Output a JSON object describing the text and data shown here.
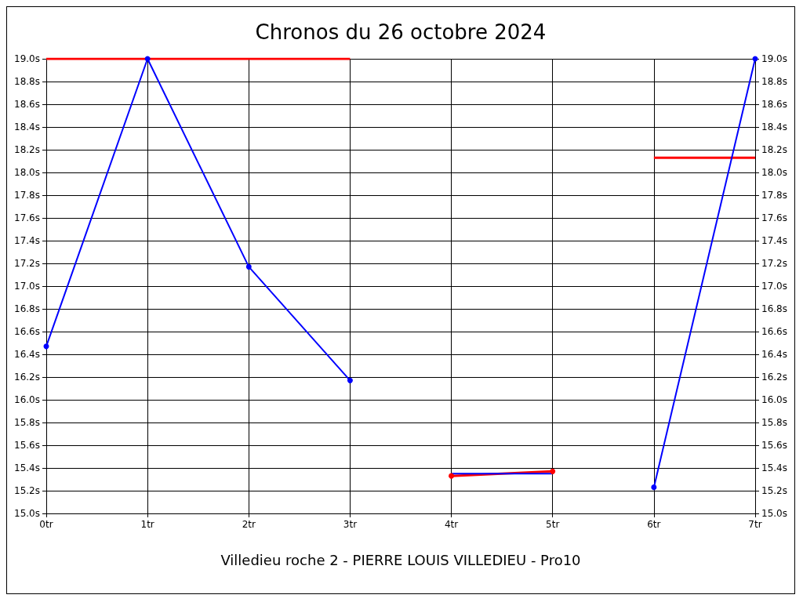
{
  "chart_data": {
    "type": "line",
    "title": "Chronos du 26 octobre 2024",
    "xlabel": "Villedieu roche 2 - PIERRE LOUIS VILLEDIEU - Pro10",
    "xlim": [
      0,
      7
    ],
    "xticks": [
      {
        "value": 0,
        "label": "0tr"
      },
      {
        "value": 1,
        "label": "1tr"
      },
      {
        "value": 2,
        "label": "2tr"
      },
      {
        "value": 3,
        "label": "3tr"
      },
      {
        "value": 4,
        "label": "4tr"
      },
      {
        "value": 5,
        "label": "5tr"
      },
      {
        "value": 6,
        "label": "6tr"
      },
      {
        "value": 7,
        "label": "7tr"
      }
    ],
    "ylim": [
      15.0,
      19.0
    ],
    "yticks": [
      {
        "value": 15.0,
        "label": "15.0s"
      },
      {
        "value": 15.2,
        "label": "15.2s"
      },
      {
        "value": 15.4,
        "label": "15.4s"
      },
      {
        "value": 15.6,
        "label": "15.6s"
      },
      {
        "value": 15.8,
        "label": "15.8s"
      },
      {
        "value": 16.0,
        "label": "16.0s"
      },
      {
        "value": 16.2,
        "label": "16.2s"
      },
      {
        "value": 16.4,
        "label": "16.4s"
      },
      {
        "value": 16.6,
        "label": "16.6s"
      },
      {
        "value": 16.8,
        "label": "16.8s"
      },
      {
        "value": 17.0,
        "label": "17.0s"
      },
      {
        "value": 17.2,
        "label": "17.2s"
      },
      {
        "value": 17.4,
        "label": "17.4s"
      },
      {
        "value": 17.6,
        "label": "17.6s"
      },
      {
        "value": 17.8,
        "label": "17.8s"
      },
      {
        "value": 18.0,
        "label": "18.0s"
      },
      {
        "value": 18.2,
        "label": "18.2s"
      },
      {
        "value": 18.4,
        "label": "18.4s"
      },
      {
        "value": 18.6,
        "label": "18.6s"
      },
      {
        "value": 18.8,
        "label": "18.8s"
      },
      {
        "value": 19.0,
        "label": "19.0s"
      }
    ],
    "y2lim": [
      15.0,
      19.0
    ],
    "y2ticks": [
      {
        "value": 15.0,
        "label": "15.0s"
      },
      {
        "value": 15.2,
        "label": "15.2s"
      },
      {
        "value": 15.4,
        "label": "15.4s"
      },
      {
        "value": 15.6,
        "label": "15.6s"
      },
      {
        "value": 15.8,
        "label": "15.8s"
      },
      {
        "value": 16.0,
        "label": "16.0s"
      },
      {
        "value": 16.2,
        "label": "16.2s"
      },
      {
        "value": 16.4,
        "label": "16.4s"
      },
      {
        "value": 16.6,
        "label": "16.6s"
      },
      {
        "value": 16.8,
        "label": "16.8s"
      },
      {
        "value": 17.0,
        "label": "17.0s"
      },
      {
        "value": 17.2,
        "label": "17.2s"
      },
      {
        "value": 17.4,
        "label": "17.4s"
      },
      {
        "value": 17.6,
        "label": "17.6s"
      },
      {
        "value": 17.8,
        "label": "17.8s"
      },
      {
        "value": 18.0,
        "label": "18.0s"
      },
      {
        "value": 18.2,
        "label": "18.2s"
      },
      {
        "value": 18.4,
        "label": "18.4s"
      },
      {
        "value": 18.6,
        "label": "18.6s"
      },
      {
        "value": 18.8,
        "label": "18.8s"
      },
      {
        "value": 19.0,
        "label": "19.0s"
      }
    ],
    "grid": true,
    "line_style": "solid",
    "series": [
      {
        "color": "#ff0000",
        "x": [
          0,
          3
        ],
        "values": [
          19.0,
          19.0
        ],
        "marker": "none"
      },
      {
        "color": "#ff0000",
        "x": [
          4,
          5
        ],
        "values": [
          15.33,
          15.37
        ],
        "marker": "circle"
      },
      {
        "color": "#ff0000",
        "x": [
          6,
          7
        ],
        "values": [
          18.13,
          18.13
        ],
        "marker": "none"
      },
      {
        "color": "#0000ff",
        "x": [
          0,
          1,
          2,
          3
        ],
        "values": [
          16.47,
          19.0,
          17.17,
          16.17
        ],
        "marker": "circle"
      },
      {
        "color": "#0000ff",
        "x": [
          4,
          5
        ],
        "values": [
          15.35,
          15.35
        ],
        "marker": "none"
      },
      {
        "color": "#0000ff",
        "x": [
          6,
          7
        ],
        "values": [
          15.23,
          19.0
        ],
        "marker": "circle"
      }
    ]
  }
}
